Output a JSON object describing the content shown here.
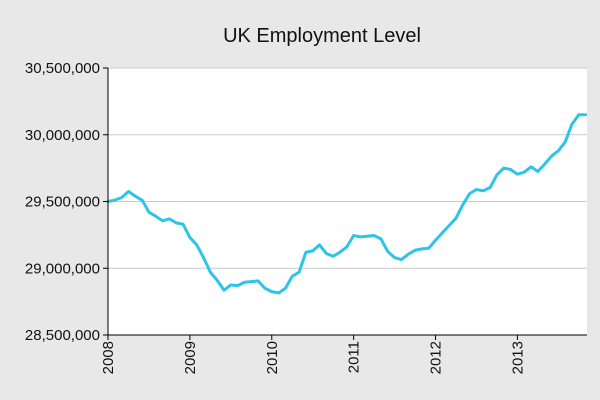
{
  "chart_data": {
    "type": "line",
    "title": "UK Employment Level",
    "xlabel": "",
    "ylabel": "",
    "ylim": [
      28500000,
      30500000
    ],
    "yticks": [
      28500000,
      29000000,
      29500000,
      30000000,
      30500000
    ],
    "ytick_labels": [
      "28,500,000",
      "29,000,000",
      "29,500,000",
      "30,000,000",
      "30,500,000"
    ],
    "xlim": [
      2008.0,
      2013.85
    ],
    "xticks": [
      2008,
      2009,
      2010,
      2011,
      2012,
      2013
    ],
    "xtick_labels": [
      "2008",
      "2009",
      "2010",
      "2011",
      "2012",
      "2013"
    ],
    "grid": true,
    "legend": "none",
    "colors": {
      "background": "#e8e8e8",
      "plot_background": "#ffffff",
      "gridline": "#cccccc",
      "line": "#2ec4e8",
      "axis": "#000000"
    },
    "series": [
      {
        "x": [
          2008.0,
          2008.083,
          2008.167,
          2008.25,
          2008.333,
          2008.417,
          2008.5,
          2008.583,
          2008.667,
          2008.75,
          2008.833,
          2008.917,
          2009.0,
          2009.083,
          2009.167,
          2009.25,
          2009.333,
          2009.417,
          2009.5,
          2009.583,
          2009.667,
          2009.75,
          2009.833,
          2009.917,
          2010.0,
          2010.083,
          2010.167,
          2010.25,
          2010.333,
          2010.417,
          2010.5,
          2010.583,
          2010.667,
          2010.75,
          2010.833,
          2010.917,
          2011.0,
          2011.083,
          2011.167,
          2011.25,
          2011.333,
          2011.417,
          2011.5,
          2011.583,
          2011.667,
          2011.75,
          2011.833,
          2011.917,
          2012.0,
          2012.083,
          2012.167,
          2012.25,
          2012.333,
          2012.417,
          2012.5,
          2012.583,
          2012.667,
          2012.75,
          2012.833,
          2012.917,
          2013.0,
          2013.083,
          2013.167,
          2013.25,
          2013.333,
          2013.417,
          2013.5,
          2013.583,
          2013.667,
          2013.75,
          2013.833
        ],
        "values": [
          29500000,
          29510000,
          29530000,
          29575000,
          29540000,
          29510000,
          29420000,
          29390000,
          29355000,
          29370000,
          29340000,
          29330000,
          29230000,
          29175000,
          29080000,
          28970000,
          28910000,
          28835000,
          28875000,
          28870000,
          28895000,
          28900000,
          28905000,
          28850000,
          28825000,
          28815000,
          28850000,
          28940000,
          28970000,
          29120000,
          29130000,
          29175000,
          29110000,
          29090000,
          29120000,
          29160000,
          29245000,
          29235000,
          29240000,
          29245000,
          29220000,
          29125000,
          29080000,
          29065000,
          29105000,
          29135000,
          29145000,
          29150000,
          29210000,
          29265000,
          29320000,
          29375000,
          29475000,
          29560000,
          29590000,
          29580000,
          29605000,
          29700000,
          29750000,
          29740000,
          29705000,
          29720000,
          29760000,
          29725000,
          29780000,
          29840000,
          29880000,
          29945000,
          30080000,
          30150000,
          30150000
        ]
      }
    ]
  }
}
